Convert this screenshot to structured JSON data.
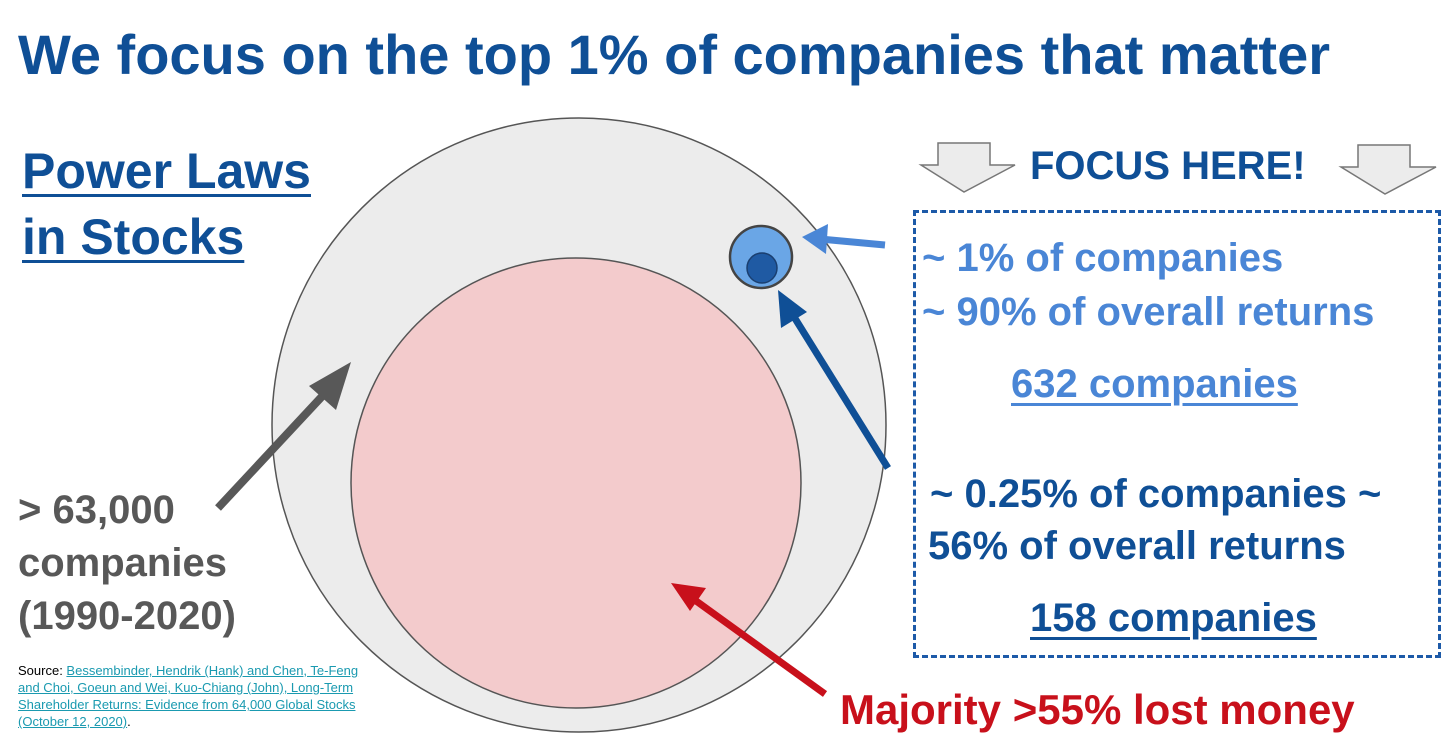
{
  "title": "We focus on the top 1% of companies that matter",
  "subtitle": [
    "Power Laws",
    "in Stocks"
  ],
  "focus_label": "FOCUS HERE!",
  "top_group": {
    "share_line": "~ 1% of companies",
    "returns_line": "~ 90% of overall returns",
    "count": "632 companies"
  },
  "elite_group": {
    "share_line": "~ 0.25% of companies ~",
    "returns_line": "56% of overall returns",
    "count": "158 companies"
  },
  "total": {
    "line1": "> 63,000",
    "line2": "companies",
    "line3": "(1990-2020)"
  },
  "loss_label": "Majority >55% lost money",
  "source": {
    "prefix": "Source: ",
    "citation": "Bessembinder, Hendrik (Hank) and Chen, Te-Feng and Choi, Goeun and Wei, Kuo-Chiang (John), Long-Term Shareholder Returns: Evidence from 64,000 Global Stocks (October 12, 2020)",
    "suffix": "."
  },
  "colors": {
    "title_blue": "#0f4f96",
    "light_blue": "#4a86d6",
    "gray_text": "#585858",
    "loss_red": "#c8101b",
    "universe_fill": "#ececec",
    "loss_fill": "#f3cbcc"
  },
  "icons": [
    "down-arrow-outline-icon",
    "down-arrow-outline-icon"
  ]
}
